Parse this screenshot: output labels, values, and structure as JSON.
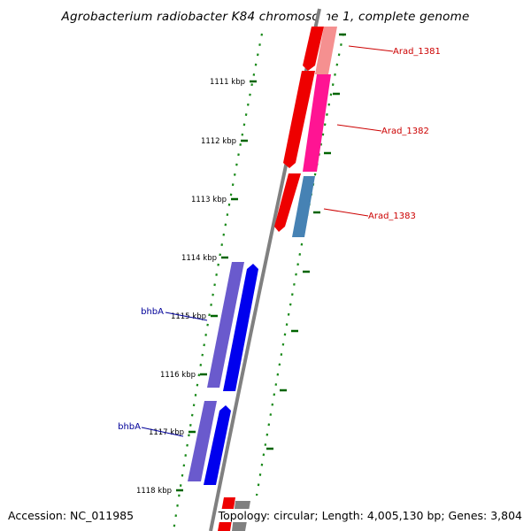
{
  "title": "Agrobacterium radiobacter K84 chromosome 1, complete genome",
  "footer": {
    "accession": "Accession: NC_011985",
    "summary": "Topology: circular; Length: 4,005,130 bp; Genes: 3,804"
  },
  "colors": {
    "backbone": "#808080",
    "tick": "#006400",
    "forward_gene": "#ff0000",
    "reverse_gene": "#0000ff",
    "label_forward": "#cc0000",
    "label_reverse": "#000099"
  },
  "ticks": [
    {
      "label": "1111 kbp"
    },
    {
      "label": "1112 kbp"
    },
    {
      "label": "1113 kbp"
    },
    {
      "label": "1114 kbp"
    },
    {
      "label": "1115 kbp"
    },
    {
      "label": "1116 kbp"
    },
    {
      "label": "1117 kbp"
    },
    {
      "label": "1118 kbp"
    }
  ],
  "genes": [
    {
      "name": "Arad_1381"
    },
    {
      "name": "Arad_1382"
    },
    {
      "name": "Arad_1383"
    },
    {
      "name": "bhbA"
    },
    {
      "name": "bhbA"
    }
  ]
}
